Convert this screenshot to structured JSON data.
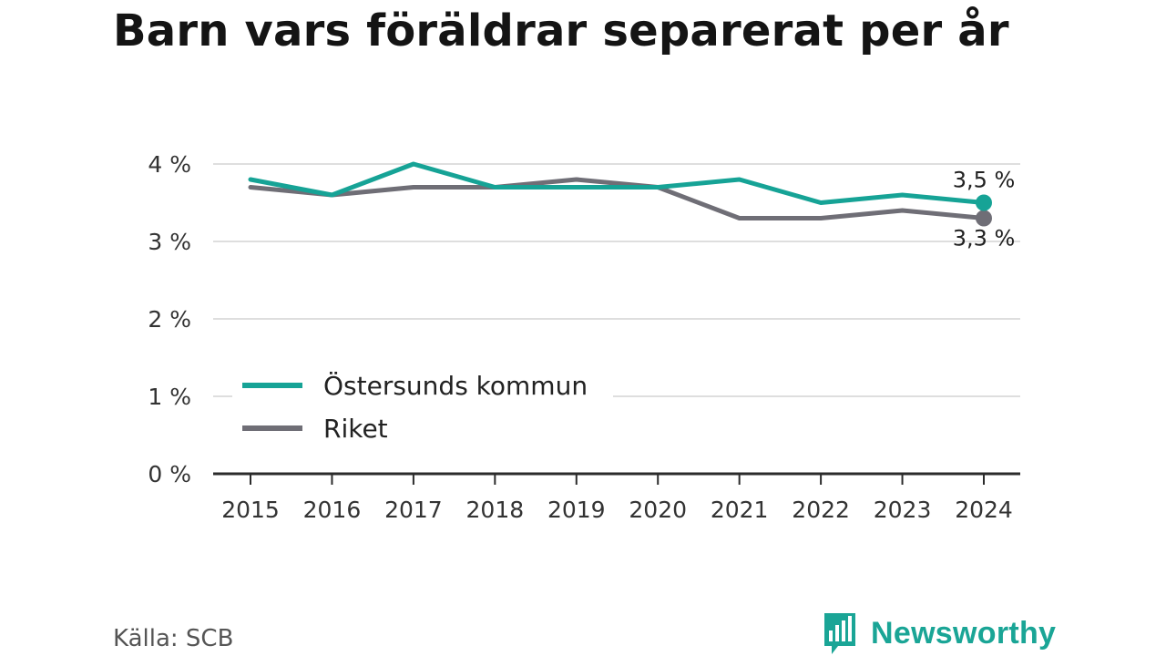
{
  "title": "Barn vars föräldrar separerat per år",
  "source": "Källa: SCB",
  "brand": {
    "name": "Newsworthy",
    "logo_icon": "bar-chart-speech-bubble-icon",
    "color": "#1aa596"
  },
  "chart_data": {
    "type": "line",
    "title": "Barn vars föräldrar separerat per år",
    "x": [
      "2015",
      "2016",
      "2017",
      "2018",
      "2019",
      "2020",
      "2021",
      "2022",
      "2023",
      "2024"
    ],
    "series": [
      {
        "name": "Östersunds kommun",
        "color": "#16a396",
        "values": [
          3.8,
          3.6,
          4.0,
          3.7,
          3.7,
          3.7,
          3.8,
          3.5,
          3.6,
          3.5
        ],
        "end_label": "3,5 %"
      },
      {
        "name": "Riket",
        "color": "#6f6e76",
        "values": [
          3.7,
          3.6,
          3.7,
          3.7,
          3.8,
          3.7,
          3.3,
          3.3,
          3.4,
          3.3
        ],
        "end_label": "3,3 %"
      }
    ],
    "ylim": [
      0,
      4
    ],
    "yticks": [
      0,
      1,
      2,
      3,
      4
    ],
    "ytick_labels": [
      "0 %",
      "1 %",
      "2 %",
      "3 %",
      "4 %"
    ],
    "xlabel": "",
    "ylabel": "",
    "grid": true,
    "legend_position": "lower-left"
  }
}
